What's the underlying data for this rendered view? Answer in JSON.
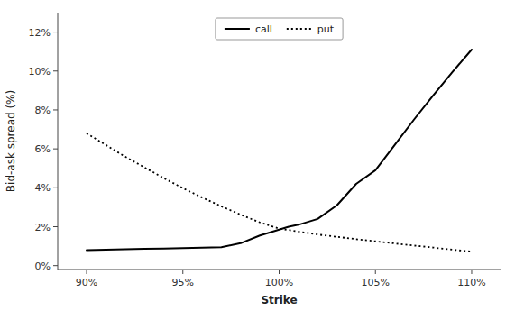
{
  "chart_data": {
    "type": "line",
    "xlabel": "Strike",
    "ylabel": "Bid-ask spread (%)",
    "x": [
      0.9,
      0.91,
      0.92,
      0.93,
      0.94,
      0.95,
      0.96,
      0.97,
      0.98,
      0.99,
      1.0,
      1.005,
      1.01,
      1.02,
      1.03,
      1.04,
      1.05,
      1.06,
      1.07,
      1.08,
      1.09,
      1.1
    ],
    "series": [
      {
        "name": "call",
        "color": "#000000",
        "line_style": "solid",
        "values": [
          0.008,
          0.0082,
          0.0084,
          0.0086,
          0.0088,
          0.009,
          0.0092,
          0.0095,
          0.0115,
          0.0155,
          0.0185,
          0.02,
          0.021,
          0.024,
          0.031,
          0.042,
          0.049,
          0.062,
          0.075,
          0.0875,
          0.0995,
          0.111
        ]
      },
      {
        "name": "put",
        "color": "#000000",
        "line_style": "dotted",
        "values": [
          0.068,
          0.062,
          0.056,
          0.0505,
          0.045,
          0.0398,
          0.035,
          0.0305,
          0.0262,
          0.0222,
          0.019,
          0.0183,
          0.0175,
          0.016,
          0.0148,
          0.0136,
          0.0125,
          0.0114,
          0.0103,
          0.0093,
          0.0082,
          0.0072
        ]
      }
    ],
    "xlim": [
      0.885,
      1.115
    ],
    "ylim": [
      -0.002,
      0.13
    ],
    "xticks": [
      {
        "value": 0.9,
        "label": "90%"
      },
      {
        "value": 0.95,
        "label": "95%"
      },
      {
        "value": 1.0,
        "label": "100%"
      },
      {
        "value": 1.05,
        "label": "105%"
      },
      {
        "value": 1.1,
        "label": "110%"
      }
    ],
    "yticks": [
      {
        "value": 0.0,
        "label": "0%"
      },
      {
        "value": 0.02,
        "label": "2%"
      },
      {
        "value": 0.04,
        "label": "4%"
      },
      {
        "value": 0.06,
        "label": "6%"
      },
      {
        "value": 0.08,
        "label": "8%"
      },
      {
        "value": 0.1,
        "label": "10%"
      },
      {
        "value": 0.12,
        "label": "12%"
      }
    ],
    "grid": false,
    "legend": "upper center"
  }
}
